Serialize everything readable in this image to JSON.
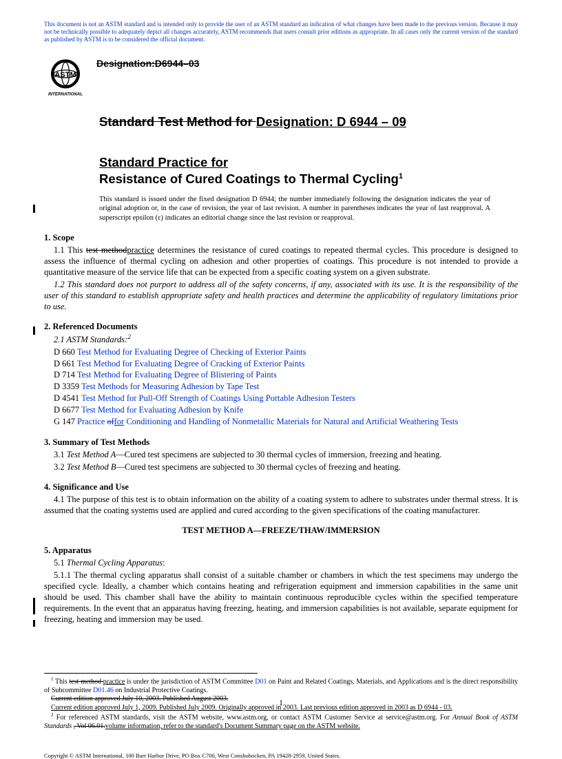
{
  "disclaimer": "This document is not an ASTM standard and is intended only to provide the user of an ASTM standard an indication of what changes have been made to the previous version. Because it may not be technically possible to adequately depict all changes accurately, ASTM recommends that users consult prior editions as appropriate. In all cases only the current version of the standard as published by ASTM is to be considered the official document.",
  "old_designation": "Designation:D6944–03",
  "title_strike": "Standard Test Method for ",
  "title_new": "Designation: D 6944 – 09",
  "practice_line1": "Standard Practice for",
  "practice_line2": "Resistance of Cured Coatings to Thermal Cycling",
  "practice_sup": "1",
  "issued": "This standard is issued under the fixed designation D 6944; the number immediately following the designation indicates the year of original adoption or, in the case of revision, the year of last revision. A number in parentheses indicates the year of last reapproval. A superscript epsilon (ε) indicates an editorial change since the last revision or reapproval.",
  "s1_head": "1.  Scope",
  "s1_1a": "1.1  This ",
  "s1_1_strike": "test method",
  "s1_1_ins": "practice",
  "s1_1b": " determines the resistance of cured coatings to repeated thermal cycles. This procedure is designed to assess the influence of thermal cycling on adhesion and other properties of coatings. This procedure is not intended to provide a quantitative measure of the service life that can be expected from a specific coating system on a given substrate.",
  "s1_2": "1.2  This standard does not purport to address all of the safety concerns, if any, associated with its use. It is the responsibility of the user of this standard to establish appropriate safety and health practices and determine the applicability of regulatory limitations prior to use.",
  "s2_head": "2.  Referenced Documents",
  "s2_1": "2.1  ASTM Standards:",
  "s2_sup": "2",
  "refs": [
    {
      "code": "D 660",
      "title": "Test Method for Evaluating Degree of Checking of Exterior Paints"
    },
    {
      "code": "D 661",
      "title": "Test Method for Evaluating Degree of Cracking of Exterior Paints"
    },
    {
      "code": "D 714",
      "title": "Test Method for Evaluating Degree of Blistering of Paints"
    },
    {
      "code": "D 3359",
      "title": "Test Methods for Measuring Adhesion by Tape Test"
    },
    {
      "code": "D 4541",
      "title": "Test Method for Pull-Off Strength of Coatings Using Portable Adhesion Testers"
    },
    {
      "code": "D 6677",
      "title": "Test Method for Evaluating Adhesion by Knife"
    }
  ],
  "g147_code": "G 147",
  "g147_a": "Practice ",
  "g147_strike": "of",
  "g147_ins": "for",
  "g147_b": " Conditioning and Handling of Nonmetallic Materials for Natural and Artificial Weathering Tests",
  "s3_head": "3.  Summary of Test Methods",
  "s3_1a": "3.1  ",
  "s3_1_it": "Test Method A",
  "s3_1b": "—Cured test specimens are subjected to 30 thermal cycles of immersion, freezing and heating.",
  "s3_2a": "3.2  ",
  "s3_2_it": "Test Method B",
  "s3_2b": "—Cured test specimens are subjected to 30 thermal cycles of freezing and heating.",
  "s4_head": "4.  Significance and Use",
  "s4_1": "4.1  The purpose of this test is to obtain information on the ability of a coating system to adhere to substrates under thermal stress. It is assumed that the coating systems used are applied and cured according to the given specifications of the coating manufacturer.",
  "method_a_head": "TEST METHOD A—FREEZE/THAW/IMMERSION",
  "s5_head": "5.  Apparatus",
  "s5_1a": "5.1  ",
  "s5_1_it": "Thermal Cycling Apparatus",
  "s5_1b": ":",
  "s5_1_1": "5.1.1  The thermal cycling apparatus shall consist of a suitable chamber or chambers in which the test specimens may undergo the specified cycle. Ideally, a chamber which contains heating and refrigeration equipment and immersion capabilities in the same unit should be used. This chamber shall have the ability to maintain continuous reproducible cycles within the specified temperature requirements. In the event that an apparatus having freezing, heating, and immersion capabilities is not available, separate equipment for freezing, heating and immersion may be used.",
  "fn1_sup": "1",
  "fn1a": " This ",
  "fn1_strike": "test method ",
  "fn1_ins": "practice",
  "fn1b": " is under the jurisdiction of ASTM Committee ",
  "fn1_link1": "D01",
  "fn1c": " on Paint and Related Coatings, Materials, and Applications and is the direct responsibility of Subcommittee ",
  "fn1_link2": "D01.46",
  "fn1d": " on Industrial Protective Coatings.",
  "fn_old": "Current edition approved July 10, 2003. Published August 2003.",
  "fn_new": "Current edition approved July 1, 2009. Published July 2009. Originally approved in 2003. Last previous edition approved in 2003 as D 6944 - 03.",
  "fn2_sup": "2",
  "fn2a": " For referenced ASTM standards, visit the ASTM website, www.astm.org, or contact ASTM Customer Service at service@astm.org. For ",
  "fn2_it": "Annual Book of ASTM Standards ",
  "fn2_strike": ", Vol 06.01.",
  "fn2_ins": "volume information, refer to the standard's Document Summary page on the ASTM website.",
  "copyright": "Copyright © ASTM International, 100 Barr Harbor Drive, PO Box C700, West Conshohocken, PA 19428-2959, United States.",
  "page_num": "1",
  "colors": {
    "link": "#0033cc",
    "text": "#000000",
    "bg": "#ffffff"
  }
}
